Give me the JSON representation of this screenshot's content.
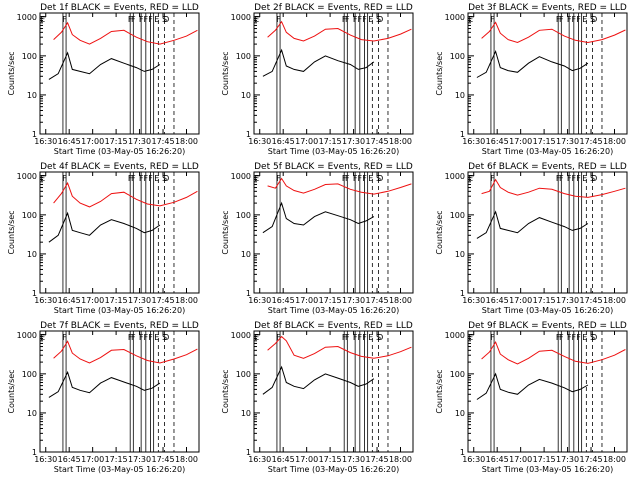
{
  "figure": {
    "shared": {
      "type": "line",
      "xlabel": "Start Time (03-May-05 16:26:20)",
      "ylabel": "Counts/sec",
      "x_tick_labels": [
        "16:30",
        "16:45",
        "17:00",
        "17:15",
        "17:30",
        "17:45",
        "18:00"
      ],
      "y_tick_labels": [
        "1",
        "10",
        "100",
        "1000"
      ],
      "y_scale": "log",
      "ylim": [
        1,
        1000
      ],
      "xlim": [
        "16:26:20",
        "18:08"
      ],
      "colors": {
        "events": "#000000",
        "lld": "#ee1111",
        "axes": "#000000"
      }
    },
    "marker_labels": [
      "E",
      "F",
      "F",
      "F",
      "F",
      "F",
      "F",
      "E",
      "S",
      "D"
    ],
    "solid_marker_times": [
      "16:41",
      "16:43",
      "17:24",
      "17:26",
      "17:31",
      "17:34",
      "17:37",
      "17:39"
    ],
    "dashed_marker_times": [
      "17:42",
      "17:46",
      "17:52"
    ]
  },
  "chart_data": [
    {
      "type": "line",
      "title": "Det 1f BLACK = Events, RED = LLD",
      "series": [
        {
          "name": "Events",
          "color": "#000000",
          "x": [
            "16:32",
            "16:38",
            "16:44",
            "16:47",
            "16:52",
            "16:58",
            "17:05",
            "17:12",
            "17:20",
            "17:28",
            "17:33",
            "17:38",
            "17:43"
          ],
          "y": [
            25,
            35,
            120,
            45,
            40,
            35,
            60,
            85,
            65,
            50,
            40,
            45,
            60
          ]
        },
        {
          "name": "LLD",
          "color": "#ee1111",
          "x": [
            "16:35",
            "16:40",
            "16:44",
            "16:47",
            "16:52",
            "16:58",
            "17:05",
            "17:12",
            "17:20",
            "17:28",
            "17:35",
            "17:43",
            "17:52",
            "18:00",
            "18:07"
          ],
          "y": [
            260,
            400,
            700,
            350,
            250,
            200,
            280,
            420,
            450,
            300,
            230,
            200,
            250,
            320,
            450
          ]
        }
      ]
    },
    {
      "type": "line",
      "title": "Det 2f BLACK = Events, RED = LLD",
      "series": [
        {
          "name": "Events",
          "color": "#000000",
          "x": [
            "16:32",
            "16:38",
            "16:44",
            "16:47",
            "16:52",
            "16:58",
            "17:05",
            "17:12",
            "17:20",
            "17:28",
            "17:33",
            "17:38",
            "17:43"
          ],
          "y": [
            30,
            40,
            140,
            55,
            45,
            40,
            70,
            100,
            75,
            60,
            45,
            50,
            70
          ]
        },
        {
          "name": "LLD",
          "color": "#ee1111",
          "x": [
            "16:35",
            "16:40",
            "16:44",
            "16:47",
            "16:52",
            "16:58",
            "17:05",
            "17:12",
            "17:20",
            "17:28",
            "17:35",
            "17:43",
            "17:52",
            "18:00",
            "18:07"
          ],
          "y": [
            300,
            450,
            750,
            400,
            280,
            240,
            320,
            480,
            500,
            340,
            260,
            240,
            280,
            360,
            480
          ]
        }
      ]
    },
    {
      "type": "line",
      "title": "Det 3f BLACK = Events, RED = LLD",
      "series": [
        {
          "name": "Events",
          "color": "#000000",
          "x": [
            "16:32",
            "16:38",
            "16:44",
            "16:47",
            "16:52",
            "16:58",
            "17:05",
            "17:12",
            "17:20",
            "17:28",
            "17:33",
            "17:38",
            "17:43"
          ],
          "y": [
            28,
            38,
            130,
            50,
            42,
            38,
            65,
            95,
            70,
            55,
            42,
            48,
            65
          ]
        },
        {
          "name": "LLD",
          "color": "#ee1111",
          "x": [
            "16:35",
            "16:40",
            "16:44",
            "16:47",
            "16:52",
            "16:58",
            "17:05",
            "17:12",
            "17:20",
            "17:28",
            "17:35",
            "17:43",
            "17:52",
            "18:00",
            "18:07"
          ],
          "y": [
            280,
            420,
            720,
            380,
            260,
            220,
            300,
            450,
            480,
            320,
            250,
            220,
            260,
            340,
            460
          ]
        }
      ]
    },
    {
      "type": "line",
      "title": "Det 4f BLACK = Events, RED = LLD",
      "series": [
        {
          "name": "Events",
          "color": "#000000",
          "x": [
            "16:32",
            "16:38",
            "16:44",
            "16:47",
            "16:52",
            "16:58",
            "17:05",
            "17:12",
            "17:20",
            "17:28",
            "17:33",
            "17:38",
            "17:43"
          ],
          "y": [
            20,
            30,
            110,
            40,
            35,
            30,
            55,
            75,
            60,
            45,
            35,
            40,
            55
          ]
        },
        {
          "name": "LLD",
          "color": "#ee1111",
          "x": [
            "16:35",
            "16:40",
            "16:44",
            "16:47",
            "16:52",
            "16:58",
            "17:05",
            "17:12",
            "17:20",
            "17:28",
            "17:35",
            "17:43",
            "17:52",
            "18:00",
            "18:07"
          ],
          "y": [
            200,
            350,
            650,
            300,
            200,
            160,
            220,
            350,
            380,
            250,
            190,
            170,
            210,
            280,
            400
          ]
        }
      ]
    },
    {
      "type": "line",
      "title": "Det 5f BLACK = Events, RED = LLD",
      "series": [
        {
          "name": "Events",
          "color": "#000000",
          "x": [
            "16:32",
            "16:38",
            "16:44",
            "16:47",
            "16:52",
            "16:58",
            "17:05",
            "17:12",
            "17:20",
            "17:28",
            "17:33",
            "17:38",
            "17:43"
          ],
          "y": [
            35,
            50,
            200,
            80,
            60,
            55,
            90,
            120,
            95,
            75,
            60,
            70,
            90
          ]
        },
        {
          "name": "LLD",
          "color": "#ee1111",
          "x": [
            "16:35",
            "16:40",
            "16:44",
            "16:47",
            "16:52",
            "16:58",
            "17:05",
            "17:12",
            "17:20",
            "17:28",
            "17:35",
            "17:43",
            "17:52",
            "18:00",
            "18:07"
          ],
          "y": [
            550,
            480,
            850,
            550,
            420,
            360,
            450,
            600,
            620,
            450,
            380,
            340,
            400,
            500,
            620
          ]
        }
      ]
    },
    {
      "type": "line",
      "title": "Det 6f BLACK = Events, RED = LLD",
      "series": [
        {
          "name": "Events",
          "color": "#000000",
          "x": [
            "16:32",
            "16:38",
            "16:44",
            "16:47",
            "16:52",
            "16:58",
            "17:05",
            "17:12",
            "17:20",
            "17:28",
            "17:33",
            "17:38",
            "17:43"
          ],
          "y": [
            25,
            35,
            120,
            45,
            40,
            35,
            60,
            85,
            65,
            50,
            40,
            45,
            60
          ]
        },
        {
          "name": "LLD",
          "color": "#ee1111",
          "x": [
            "16:35",
            "16:40",
            "16:44",
            "16:47",
            "16:52",
            "16:58",
            "17:05",
            "17:12",
            "17:20",
            "17:28",
            "17:35",
            "17:43",
            "17:52",
            "18:00",
            "18:07"
          ],
          "y": [
            350,
            400,
            800,
            500,
            380,
            320,
            380,
            480,
            450,
            350,
            300,
            280,
            330,
            400,
            480
          ]
        }
      ]
    },
    {
      "type": "line",
      "title": "Det 7f BLACK = Events, RED = LLD",
      "series": [
        {
          "name": "Events",
          "color": "#000000",
          "x": [
            "16:32",
            "16:38",
            "16:44",
            "16:47",
            "16:52",
            "16:58",
            "17:05",
            "17:12",
            "17:20",
            "17:28",
            "17:33",
            "17:38",
            "17:43"
          ],
          "y": [
            25,
            35,
            110,
            45,
            38,
            33,
            58,
            80,
            62,
            48,
            38,
            43,
            58
          ]
        },
        {
          "name": "LLD",
          "color": "#ee1111",
          "x": [
            "16:35",
            "16:40",
            "16:44",
            "16:47",
            "16:52",
            "16:58",
            "17:05",
            "17:12",
            "17:20",
            "17:28",
            "17:35",
            "17:43",
            "17:52",
            "18:00",
            "18:07"
          ],
          "y": [
            250,
            380,
            680,
            340,
            240,
            190,
            260,
            400,
            420,
            290,
            220,
            190,
            240,
            310,
            430
          ]
        }
      ]
    },
    {
      "type": "line",
      "title": "Det 8f BLACK = Events, RED = LLD",
      "series": [
        {
          "name": "Events",
          "color": "#000000",
          "x": [
            "16:32",
            "16:38",
            "16:44",
            "16:47",
            "16:52",
            "16:58",
            "17:05",
            "17:12",
            "17:20",
            "17:28",
            "17:33",
            "17:38",
            "17:43"
          ],
          "y": [
            30,
            45,
            150,
            60,
            48,
            42,
            70,
            100,
            78,
            60,
            48,
            55,
            75
          ]
        },
        {
          "name": "LLD",
          "color": "#ee1111",
          "x": [
            "16:35",
            "16:40",
            "16:44",
            "16:47",
            "16:52",
            "16:58",
            "17:05",
            "17:12",
            "17:20",
            "17:28",
            "17:35",
            "17:43",
            "17:52",
            "18:00",
            "18:07"
          ],
          "y": [
            400,
            600,
            900,
            700,
            300,
            250,
            330,
            480,
            500,
            350,
            280,
            250,
            290,
            370,
            480
          ]
        }
      ]
    },
    {
      "type": "line",
      "title": "Det 9f BLACK = Events, RED = LLD",
      "series": [
        {
          "name": "Events",
          "color": "#000000",
          "x": [
            "16:32",
            "16:38",
            "16:44",
            "16:47",
            "16:52",
            "16:58",
            "17:05",
            "17:12",
            "17:20",
            "17:28",
            "17:33",
            "17:38",
            "17:43"
          ],
          "y": [
            22,
            32,
            100,
            40,
            34,
            30,
            52,
            72,
            58,
            44,
            35,
            40,
            52
          ]
        },
        {
          "name": "LLD",
          "color": "#ee1111",
          "x": [
            "16:35",
            "16:40",
            "16:44",
            "16:47",
            "16:52",
            "16:58",
            "17:05",
            "17:12",
            "17:20",
            "17:28",
            "17:35",
            "17:43",
            "17:52",
            "18:00",
            "18:07"
          ],
          "y": [
            240,
            360,
            650,
            320,
            230,
            180,
            250,
            380,
            400,
            280,
            210,
            185,
            230,
            300,
            420
          ]
        }
      ]
    }
  ]
}
